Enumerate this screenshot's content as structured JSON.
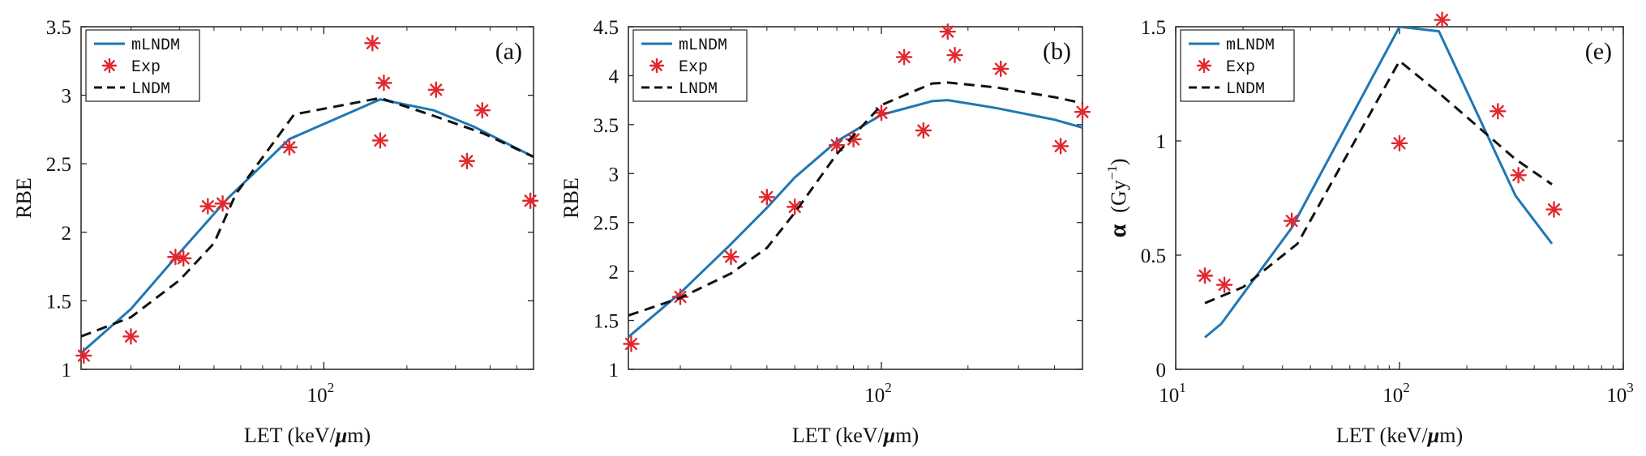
{
  "colors": {
    "mlndm": "#1f77b4",
    "exp": "#e0282e",
    "lndm": "#111111",
    "axes": "#222222"
  },
  "chart_data": [
    {
      "type": "line",
      "panel": "(a)",
      "xlabel_text": "LET (keV/",
      "xlabel_mu": "μ",
      "xlabel_unit": "m)",
      "ylabel": "RBE",
      "xscale": "log",
      "xlim": [
        13.2,
        575
      ],
      "ylim": [
        1,
        3.5
      ],
      "yticks": [
        1,
        1.5,
        2,
        2.5,
        3,
        3.5
      ],
      "yticklabels": [
        "1",
        "1.5",
        "2",
        "2.5",
        "3",
        "3.5"
      ],
      "xticks": [
        100
      ],
      "xtick_base": "10",
      "xtick_exp": "2",
      "legend": [
        "mLNDM",
        "Exp",
        "LNDM"
      ],
      "legend_position": "top-left",
      "series": [
        {
          "name": "mLNDM",
          "style": "solid",
          "x": [
            13.2,
            20,
            30,
            45,
            75,
            160,
            250,
            350,
            575
          ],
          "y": [
            1.12,
            1.44,
            1.85,
            2.25,
            2.68,
            2.97,
            2.89,
            2.77,
            2.55
          ]
        },
        {
          "name": "Exp",
          "style": "marker",
          "x": [
            13.5,
            20,
            29,
            31,
            38,
            43,
            75,
            150,
            160,
            165,
            255,
            330,
            375,
            560
          ],
          "y": [
            1.1,
            1.24,
            1.82,
            1.81,
            2.19,
            2.21,
            2.62,
            3.38,
            2.67,
            3.09,
            3.04,
            2.52,
            2.89,
            2.23
          ]
        },
        {
          "name": "LNDM",
          "style": "dashed",
          "x": [
            13.2,
            20,
            30,
            40,
            48,
            78,
            160,
            250,
            380,
            575
          ],
          "y": [
            1.24,
            1.38,
            1.65,
            1.92,
            2.28,
            2.86,
            2.98,
            2.85,
            2.72,
            2.55
          ]
        }
      ]
    },
    {
      "type": "line",
      "panel": "(b)",
      "xlabel_text": "LET (keV/",
      "xlabel_mu": "μ",
      "xlabel_unit": "m)",
      "ylabel": "RBE",
      "xscale": "log",
      "xlim": [
        13.2,
        500
      ],
      "ylim": [
        1,
        4.5
      ],
      "yticks": [
        1,
        1.5,
        2,
        2.5,
        3,
        3.5,
        4,
        4.5
      ],
      "yticklabels": [
        "1",
        "1.5",
        "2",
        "2.5",
        "3",
        "3.5",
        "4",
        "4.5"
      ],
      "xticks": [
        100
      ],
      "xtick_base": "10",
      "xtick_exp": "2",
      "legend": [
        "mLNDM",
        "Exp",
        "LNDM"
      ],
      "legend_position": "top-left",
      "series": [
        {
          "name": "mLNDM",
          "style": "solid",
          "x": [
            13.2,
            20,
            30,
            40,
            50,
            70,
            100,
            150,
            170,
            250,
            400,
            500
          ],
          "y": [
            1.33,
            1.78,
            2.28,
            2.65,
            2.96,
            3.33,
            3.6,
            3.74,
            3.75,
            3.67,
            3.55,
            3.47
          ]
        },
        {
          "name": "Exp",
          "style": "marker",
          "x": [
            13.5,
            20,
            30,
            40,
            50,
            70,
            80,
            100,
            120,
            140,
            170,
            180,
            260,
            420,
            500
          ],
          "y": [
            1.26,
            1.74,
            2.15,
            2.76,
            2.66,
            3.29,
            3.35,
            3.62,
            4.19,
            3.44,
            4.45,
            4.21,
            4.07,
            3.28,
            3.63
          ]
        },
        {
          "name": "LNDM",
          "style": "dashed",
          "x": [
            13.2,
            20,
            30,
            40,
            50,
            70,
            100,
            150,
            170,
            250,
            400,
            500
          ],
          "y": [
            1.55,
            1.73,
            1.98,
            2.24,
            2.6,
            3.2,
            3.7,
            3.92,
            3.93,
            3.88,
            3.78,
            3.72
          ]
        }
      ]
    },
    {
      "type": "line",
      "panel": "(e)",
      "xlabel_text": "LET (keV/",
      "xlabel_mu": "μ",
      "xlabel_unit": "m)",
      "ylabel_greek": "α",
      "ylabel_unit": "(Gy",
      "ylabel_exp": "−1",
      "ylabel_close": ")",
      "xscale": "log",
      "xlim": [
        10,
        1000
      ],
      "ylim": [
        0,
        1.5
      ],
      "yticks": [
        0,
        0.5,
        1,
        1.5
      ],
      "yticklabels": [
        "0",
        "0.5",
        "1",
        "1.5"
      ],
      "xticks": [
        10,
        100,
        1000
      ],
      "xtick_base": "10",
      "xtick_exps": [
        "1",
        "2",
        "3"
      ],
      "legend": [
        "mLNDM",
        "Exp",
        "LNDM"
      ],
      "legend_position": "top-left",
      "series": [
        {
          "name": "mLNDM",
          "style": "solid",
          "x": [
            13.5,
            16,
            33,
            100,
            150,
            330,
            480
          ],
          "y": [
            0.14,
            0.2,
            0.62,
            1.5,
            1.48,
            0.76,
            0.55
          ]
        },
        {
          "name": "Exp",
          "style": "marker",
          "x": [
            13.5,
            16.5,
            33,
            100,
            155,
            275,
            340,
            490
          ],
          "y": [
            0.41,
            0.37,
            0.65,
            0.99,
            1.53,
            1.13,
            0.85,
            0.7
          ]
        },
        {
          "name": "LNDM",
          "style": "dashed",
          "x": [
            13.5,
            20,
            35,
            100,
            150,
            330,
            480
          ],
          "y": [
            0.29,
            0.36,
            0.55,
            1.35,
            1.21,
            0.92,
            0.81
          ]
        }
      ]
    }
  ]
}
